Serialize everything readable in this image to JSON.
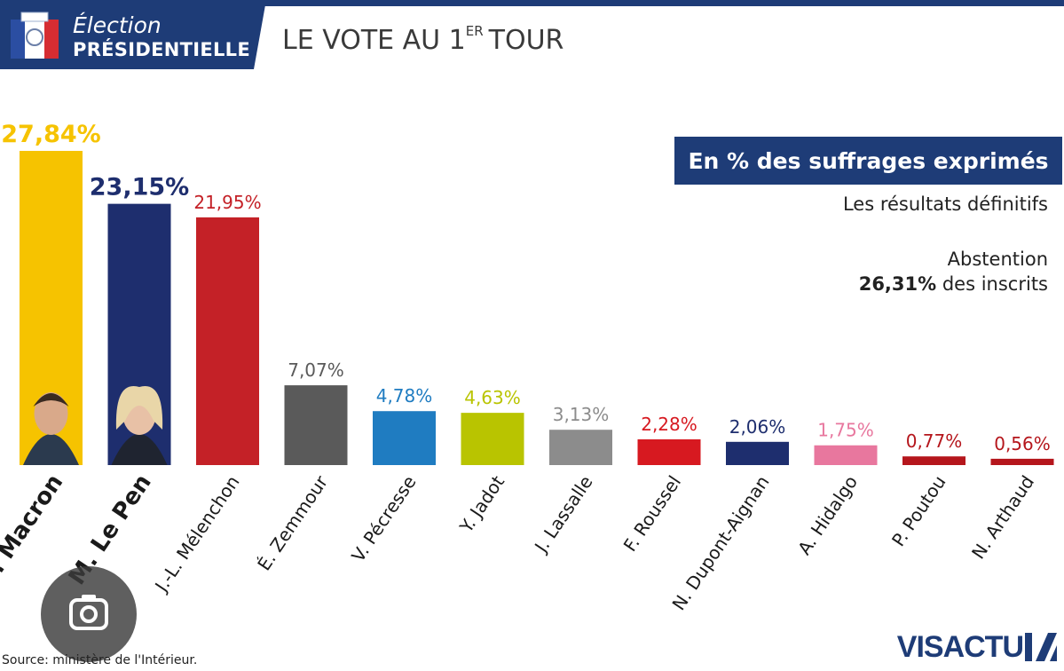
{
  "header": {
    "line1": "Élection",
    "line2": "PRÉSIDENTIELLE",
    "title_main": "LE VOTE AU 1",
    "title_sup": "ER",
    "title_end": "TOUR"
  },
  "unit_label": "En % des suffrages exprimés",
  "notes": {
    "results": "Les résultats définitifs",
    "abstention_label": "Abstention",
    "abstention_value": "26,31%",
    "abstention_suffix": " des inscrits"
  },
  "source": "Source: ministère de l'Intérieur.",
  "brand": "VISACTU",
  "colors": {
    "macron": "#f6c300",
    "lepen": "#1e2e6e",
    "melenchon": "#c42127",
    "zemmour": "#5a5a5a",
    "pecresse": "#1f7cc1",
    "jadot": "#b9c400",
    "lassalle": "#8c8c8c",
    "roussel": "#d71920",
    "dupont_aignan": "#1e2e6e",
    "hidalgo": "#e8779e",
    "poutou": "#b5161c",
    "arthaud": "#b5161c",
    "header_bg": "#1e3c77"
  },
  "chart_data": {
    "type": "bar",
    "categories": [
      "E. Macron",
      "M. Le Pen",
      "J.-L. Mélenchon",
      "É. Zemmour",
      "V. Pécresse",
      "Y. Jadot",
      "J. Lassalle",
      "F. Roussel",
      "N. Dupont-Aignan",
      "A. Hidalgo",
      "P. Poutou",
      "N. Arthaud"
    ],
    "values": [
      27.84,
      23.15,
      21.95,
      7.07,
      4.78,
      4.63,
      3.13,
      2.28,
      2.06,
      1.75,
      0.77,
      0.56
    ],
    "value_labels": [
      "27,84%",
      "23,15%",
      "21,95%",
      "7,07%",
      "4,78%",
      "4,63%",
      "3,13%",
      "2,28%",
      "2,06%",
      "1,75%",
      "0,77%",
      "0,56%"
    ],
    "bar_colors": [
      "#f6c300",
      "#1e2e6e",
      "#c42127",
      "#5a5a5a",
      "#1f7cc1",
      "#b9c400",
      "#8c8c8c",
      "#d71920",
      "#1e2e6e",
      "#e8779e",
      "#b5161c",
      "#b5161c"
    ],
    "highlighted": [
      true,
      true,
      false,
      false,
      false,
      false,
      false,
      false,
      false,
      false,
      false,
      false
    ],
    "title": "LE VOTE AU 1ER TOUR",
    "ylabel": "En % des suffrages exprimés",
    "ylim": [
      0,
      27.84
    ],
    "grid": false,
    "legend": "none"
  }
}
